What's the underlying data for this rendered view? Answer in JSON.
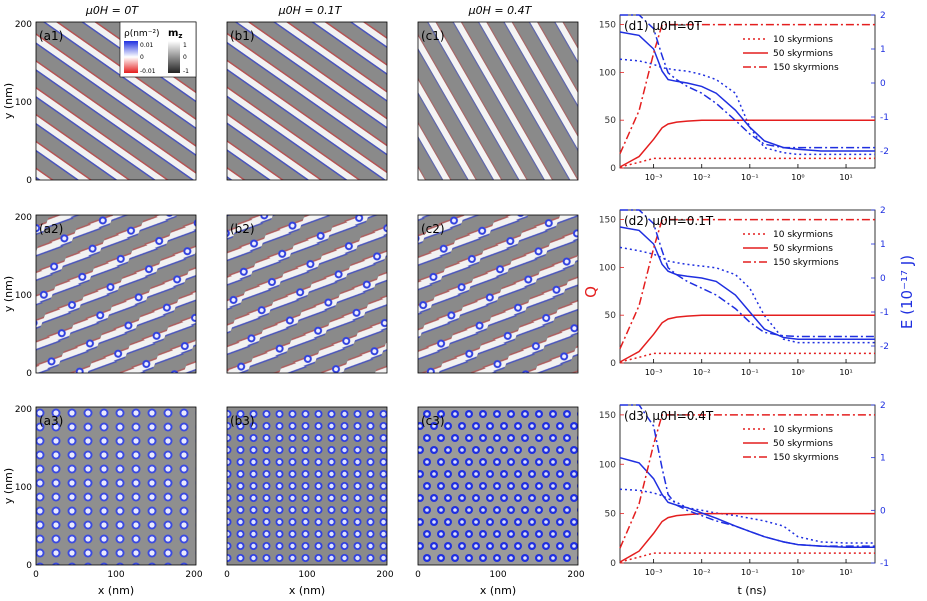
{
  "columns": [
    {
      "field_title": "μ0H = 0T"
    },
    {
      "field_title": "μ0H = 0.1T"
    },
    {
      "field_title": "μ0H = 0.4T"
    }
  ],
  "panel_labels": [
    [
      "(a1)",
      "(b1)",
      "(c1)"
    ],
    [
      "(a2)",
      "(b2)",
      "(c2)"
    ],
    [
      "(a3)",
      "(b3)",
      "(c3)"
    ]
  ],
  "axes": {
    "x_label": "x (nm)",
    "y_label": "y (nm)",
    "x_ticks": [
      "0",
      "100",
      "200"
    ],
    "y_ticks": [
      "0",
      "100",
      "200"
    ]
  },
  "colorbar": {
    "rho_label": "ρ(nm⁻²)",
    "rho_ticks": [
      "0.01",
      "0",
      "-0.01"
    ],
    "mz_label": "m",
    "mz_sub": "z",
    "mz_ticks": [
      "1",
      "0",
      "-1"
    ]
  },
  "colors": {
    "red": "#e41e1e",
    "blue": "#1f2fe0",
    "gray": "#8a8a8a"
  },
  "right_axes": {
    "left_label": "Q",
    "right_label": "E (10⁻¹⁷ J)",
    "x_label": "t (ns)",
    "q_ticks": [
      "0",
      "50",
      "100",
      "150"
    ],
    "x_ticks": [
      "10⁻³",
      "10⁻²",
      "10⁻¹",
      "10⁰",
      "10¹"
    ]
  },
  "legend": [
    "10  skyrmions",
    "50  skyrmions",
    "150 skyrmions"
  ],
  "chart_data": [
    {
      "type": "line",
      "title": "(d1) μ0H=0T",
      "xscale": "log",
      "xlim": [
        0.0002,
        40
      ],
      "ylim_left": [
        0,
        160
      ],
      "ylim_right": [
        -2.5,
        2
      ],
      "right_ticks": [
        "2",
        "1",
        "0",
        "-1",
        "-2"
      ],
      "t": [
        0.0002,
        0.0005,
        0.001,
        0.0015,
        0.002,
        0.003,
        0.005,
        0.01,
        0.02,
        0.05,
        0.1,
        0.2,
        0.5,
        1,
        3,
        10,
        40
      ],
      "Q": {
        "10": [
          1,
          6,
          10,
          10,
          10,
          10,
          10,
          10,
          10,
          10,
          10,
          10,
          10,
          10,
          10,
          10,
          10
        ],
        "50": [
          1,
          12,
          30,
          42,
          46,
          48,
          49,
          50,
          50,
          50,
          50,
          50,
          50,
          50,
          50,
          50,
          50
        ],
        "150": [
          15,
          60,
          120,
          150,
          150,
          150,
          150,
          150,
          150,
          150,
          150,
          150,
          150,
          150,
          150,
          150,
          150
        ]
      },
      "E": {
        "10": [
          0.7,
          0.65,
          0.55,
          0.45,
          0.42,
          0.38,
          0.35,
          0.25,
          0.1,
          -0.3,
          -1.3,
          -1.9,
          -2.05,
          -2.1,
          -2.1,
          -2.1,
          -2.1
        ],
        "50": [
          1.5,
          1.4,
          1.0,
          0.35,
          0.1,
          0.05,
          0.0,
          -0.1,
          -0.3,
          -0.8,
          -1.3,
          -1.7,
          -1.9,
          -1.95,
          -2.0,
          -2.0,
          -2.0
        ],
        "150": [
          2.5,
          2.2,
          1.6,
          0.8,
          0.3,
          0.1,
          -0.1,
          -0.3,
          -0.6,
          -1.1,
          -1.5,
          -1.8,
          -1.9,
          -1.9,
          -1.9,
          -1.9,
          -1.9
        ]
      }
    },
    {
      "type": "line",
      "title": "(d2) μ0H=0.1T",
      "xscale": "log",
      "xlim": [
        0.0002,
        40
      ],
      "ylim_left": [
        0,
        160
      ],
      "ylim_right": [
        -2.5,
        2
      ],
      "right_ticks": [
        "2",
        "1",
        "0",
        "-1",
        "-2"
      ],
      "t": [
        0.0002,
        0.0005,
        0.001,
        0.0015,
        0.002,
        0.003,
        0.005,
        0.01,
        0.02,
        0.05,
        0.1,
        0.2,
        0.5,
        1,
        3,
        10,
        40
      ],
      "Q": {
        "10": [
          1,
          6,
          10,
          10,
          10,
          10,
          10,
          10,
          10,
          10,
          10,
          10,
          10,
          10,
          10,
          10,
          10
        ],
        "50": [
          1,
          12,
          30,
          42,
          46,
          48,
          49,
          50,
          50,
          50,
          50,
          50,
          50,
          50,
          50,
          50,
          50
        ],
        "150": [
          15,
          60,
          120,
          150,
          150,
          150,
          150,
          150,
          150,
          150,
          150,
          150,
          150,
          150,
          150,
          150,
          150
        ]
      },
      "E": {
        "10": [
          0.9,
          0.8,
          0.7,
          0.6,
          0.5,
          0.45,
          0.4,
          0.35,
          0.3,
          0.1,
          -0.3,
          -1.1,
          -1.8,
          -1.9,
          -1.9,
          -1.9,
          -1.9
        ],
        "50": [
          1.5,
          1.4,
          1.0,
          0.4,
          0.2,
          0.1,
          0.05,
          0.0,
          -0.1,
          -0.5,
          -1.0,
          -1.5,
          -1.75,
          -1.8,
          -1.8,
          -1.8,
          -1.8
        ],
        "150": [
          2.5,
          2.2,
          1.6,
          0.8,
          0.3,
          0.1,
          -0.1,
          -0.3,
          -0.5,
          -0.9,
          -1.3,
          -1.6,
          -1.7,
          -1.72,
          -1.72,
          -1.72,
          -1.72
        ]
      }
    },
    {
      "type": "line",
      "title": "(d3) μ0H=0.4T",
      "xscale": "log",
      "xlim": [
        0.0002,
        40
      ],
      "ylim_left": [
        0,
        160
      ],
      "ylim_right": [
        -1,
        2
      ],
      "right_ticks": [
        "2",
        "1",
        "0",
        "-1"
      ],
      "t": [
        0.0002,
        0.0005,
        0.001,
        0.0015,
        0.002,
        0.003,
        0.005,
        0.01,
        0.02,
        0.05,
        0.1,
        0.2,
        0.5,
        1,
        3,
        10,
        40
      ],
      "Q": {
        "10": [
          1,
          6,
          10,
          10,
          10,
          10,
          10,
          10,
          10,
          10,
          10,
          10,
          10,
          10,
          10,
          10,
          10
        ],
        "50": [
          1,
          12,
          30,
          42,
          46,
          48,
          49,
          50,
          50,
          50,
          50,
          50,
          50,
          50,
          50,
          50,
          50
        ],
        "150": [
          15,
          60,
          120,
          150,
          150,
          150,
          150,
          150,
          150,
          150,
          150,
          150,
          150,
          150,
          150,
          150,
          150
        ]
      },
      "E": {
        "10": [
          0.4,
          0.38,
          0.33,
          0.28,
          0.22,
          0.15,
          0.05,
          0.0,
          -0.05,
          -0.1,
          -0.15,
          -0.2,
          -0.3,
          -0.5,
          -0.6,
          -0.62,
          -0.62
        ],
        "50": [
          1.0,
          0.9,
          0.6,
          0.3,
          0.15,
          0.1,
          0.05,
          -0.05,
          -0.15,
          -0.3,
          -0.4,
          -0.5,
          -0.6,
          -0.65,
          -0.68,
          -0.7,
          -0.7
        ],
        "150": [
          2.5,
          2.2,
          1.6,
          0.8,
          0.3,
          0.1,
          0.0,
          -0.1,
          -0.2,
          -0.3,
          -0.4,
          -0.5,
          -0.6,
          -0.65,
          -0.68,
          -0.68,
          -0.68
        ]
      }
    }
  ]
}
